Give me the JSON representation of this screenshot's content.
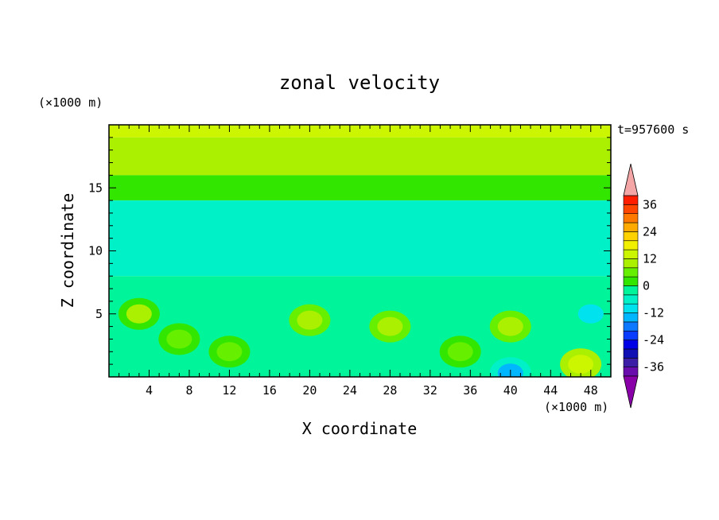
{
  "chart_data": {
    "type": "heatmap",
    "title": "zonal velocity",
    "xlabel": "X coordinate",
    "ylabel": "Z coordinate",
    "x_units": "(×1000 m)",
    "y_units": "(×1000 m)",
    "time_label": "t=957600 s",
    "xlim": [
      0,
      50
    ],
    "ylim": [
      0,
      20
    ],
    "x_ticks": [
      4,
      8,
      12,
      16,
      20,
      24,
      28,
      32,
      36,
      40,
      44,
      48
    ],
    "y_ticks": [
      5,
      10,
      15
    ],
    "colorbar": {
      "levels": [
        -40,
        -36,
        -32,
        -28,
        -24,
        -20,
        -16,
        -12,
        -8,
        -4,
        0,
        4,
        8,
        12,
        16,
        20,
        24,
        28,
        32,
        36,
        40
      ],
      "tick_labels": [
        -36,
        -24,
        -12,
        0,
        12,
        24,
        36
      ],
      "colors": [
        "#6a0dad",
        "#3c1fa6",
        "#1010b4",
        "#0000e6",
        "#0a3cff",
        "#0b78ff",
        "#00b6ff",
        "#00e3ee",
        "#00f0c8",
        "#00f59a",
        "#32e600",
        "#66f000",
        "#aaf000",
        "#ccf500",
        "#f0f000",
        "#ffd200",
        "#ffaa00",
        "#ff7800",
        "#ff4600",
        "#ff1e00"
      ],
      "under_color": "#8a00a8",
      "over_color": "#f4a6a6"
    },
    "field": {
      "description": "zonal velocity (m/s) on x-z grid, contour-filled",
      "bands": [
        {
          "z_range": [
            19,
            20
          ],
          "value": 14
        },
        {
          "z_range": [
            16,
            19
          ],
          "value": 10
        },
        {
          "z_range": [
            14,
            16
          ],
          "value": 2
        },
        {
          "z_range": [
            8,
            14
          ],
          "value": -6
        },
        {
          "z_range": [
            0,
            8
          ],
          "value": -2
        }
      ],
      "blobs": [
        {
          "x": 3,
          "z": 5,
          "value": 8
        },
        {
          "x": 7,
          "z": 3,
          "value": 6
        },
        {
          "x": 12,
          "z": 2,
          "value": 6
        },
        {
          "x": 20,
          "z": 4.5,
          "value": 10
        },
        {
          "x": 28,
          "z": 4,
          "value": 10
        },
        {
          "x": 35,
          "z": 2,
          "value": 6
        },
        {
          "x": 40,
          "z": 4,
          "value": 10
        },
        {
          "x": 47,
          "z": 1,
          "value": 14
        },
        {
          "x": 40,
          "z": 0.3,
          "value": -14
        },
        {
          "x": 48,
          "z": 5,
          "value": -10
        }
      ]
    }
  }
}
